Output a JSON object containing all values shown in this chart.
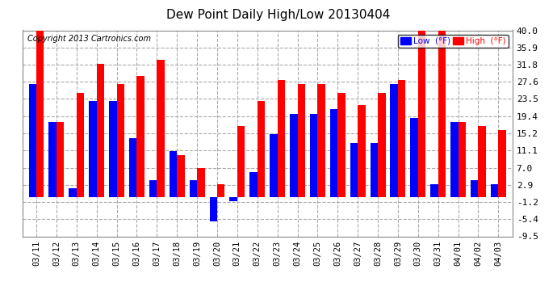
{
  "title": "Dew Point Daily High/Low 20130404",
  "copyright": "Copyright 2013 Cartronics.com",
  "legend_low": "Low  (°F)",
  "legend_high": "High  (°F)",
  "dates": [
    "03/11",
    "03/12",
    "03/13",
    "03/14",
    "03/15",
    "03/16",
    "03/17",
    "03/18",
    "03/19",
    "03/20",
    "03/21",
    "03/22",
    "03/23",
    "03/24",
    "03/25",
    "03/26",
    "03/27",
    "03/28",
    "03/29",
    "03/30",
    "03/31",
    "04/01",
    "04/02",
    "04/03"
  ],
  "low_values": [
    27.0,
    18.0,
    2.0,
    23.0,
    23.0,
    14.0,
    4.0,
    11.0,
    4.0,
    -6.0,
    -1.0,
    6.0,
    15.0,
    20.0,
    20.0,
    21.0,
    13.0,
    13.0,
    27.0,
    19.0,
    3.0,
    18.0,
    4.0,
    3.0
  ],
  "high_values": [
    40.0,
    18.0,
    25.0,
    32.0,
    27.0,
    29.0,
    33.0,
    10.0,
    7.0,
    3.0,
    17.0,
    23.0,
    28.0,
    27.0,
    27.0,
    25.0,
    22.0,
    25.0,
    28.0,
    40.0,
    40.0,
    18.0,
    17.0,
    16.0
  ],
  "low_color": "#0000ff",
  "high_color": "#ff0000",
  "bg_color": "#ffffff",
  "grid_color": "#aaaaaa",
  "yticks": [
    -9.5,
    -5.4,
    -1.2,
    2.9,
    7.0,
    11.1,
    15.2,
    19.4,
    23.5,
    27.6,
    31.8,
    35.9,
    40.0
  ],
  "ymin": -9.5,
  "ymax": 40.0,
  "bar_width": 0.38
}
